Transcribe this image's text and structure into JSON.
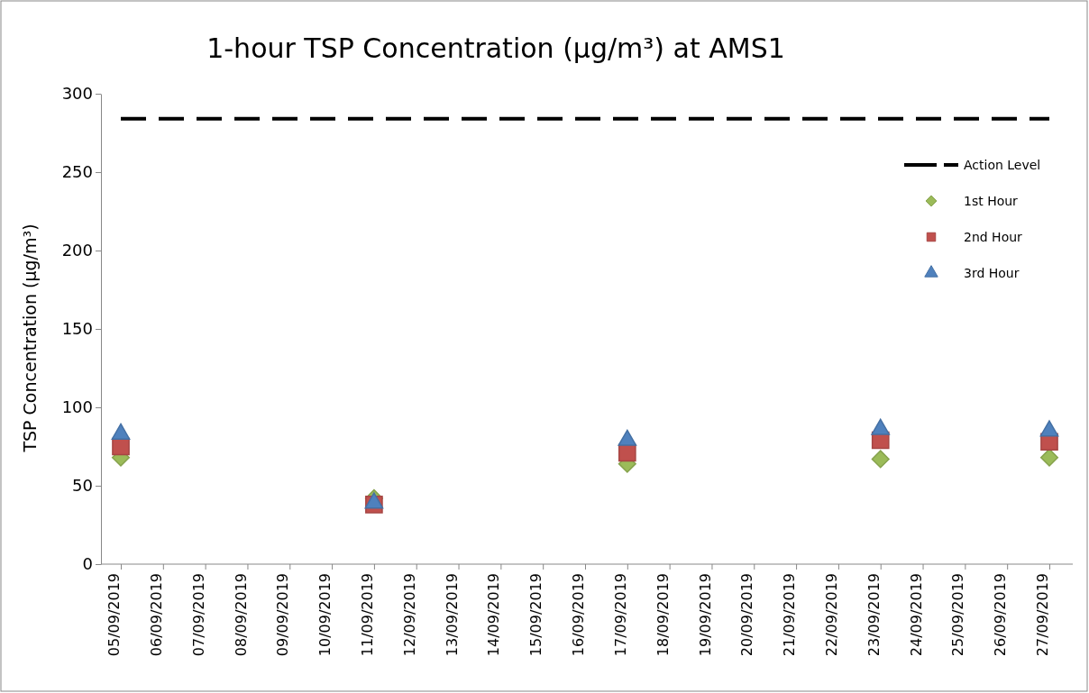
{
  "chart_data": {
    "type": "scatter",
    "title": "1-hour TSP Concentration (µg/m³) at AMS1",
    "ylabel": "TSP Concentration (µg/m³)",
    "categories": [
      "05/09/2019",
      "06/09/2019",
      "07/09/2019",
      "08/09/2019",
      "09/09/2019",
      "10/09/2019",
      "11/09/2019",
      "12/09/2019",
      "13/09/2019",
      "14/09/2019",
      "15/09/2019",
      "16/09/2019",
      "17/09/2019",
      "18/09/2019",
      "19/09/2019",
      "20/09/2019",
      "21/09/2019",
      "22/09/2019",
      "23/09/2019",
      "24/09/2019",
      "25/09/2019",
      "26/09/2019",
      "27/09/2019"
    ],
    "ylim": [
      0,
      300
    ],
    "yticks": [
      0,
      50,
      100,
      150,
      200,
      250,
      300
    ],
    "grid": false,
    "legend": "right",
    "series": [
      {
        "name": "Action Level",
        "type": "line",
        "line_style": "dashed",
        "marker": "none",
        "color": "#000000",
        "values": [
          284,
          284,
          284,
          284,
          284,
          284,
          284,
          284,
          284,
          284,
          284,
          284,
          284,
          284,
          284,
          284,
          284,
          284,
          284,
          284,
          284,
          284,
          284
        ]
      },
      {
        "name": "1st Hour",
        "marker": "diamond",
        "color": "#9bbb59",
        "values": [
          68,
          null,
          null,
          null,
          null,
          null,
          42,
          null,
          null,
          null,
          null,
          null,
          64,
          null,
          null,
          null,
          null,
          null,
          67,
          null,
          null,
          null,
          68
        ]
      },
      {
        "name": "2nd Hour",
        "marker": "square",
        "color": "#c0504d",
        "values": [
          75,
          null,
          null,
          null,
          null,
          null,
          38,
          null,
          null,
          null,
          null,
          null,
          71,
          null,
          null,
          null,
          null,
          null,
          79,
          null,
          null,
          null,
          78
        ]
      },
      {
        "name": "3rd Hour",
        "marker": "triangle",
        "color": "#4f81bd",
        "values": [
          83,
          null,
          null,
          null,
          null,
          null,
          39,
          null,
          null,
          null,
          null,
          null,
          79,
          null,
          null,
          null,
          null,
          null,
          86,
          null,
          null,
          null,
          85
        ]
      }
    ]
  }
}
